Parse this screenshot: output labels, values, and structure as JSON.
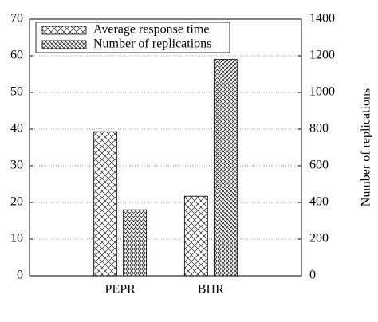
{
  "chart_data": {
    "type": "bar",
    "y2_label": "Number of replications",
    "categories": [
      "PEPR",
      "BHR"
    ],
    "series": [
      {
        "name": "Average response time",
        "values": [
          39.3,
          21.7
        ]
      },
      {
        "name": "Number of replications",
        "axis": "y2",
        "values": [
          360,
          1180
        ]
      }
    ],
    "ylim": [
      0,
      70
    ],
    "yticks": [
      0,
      10,
      20,
      30,
      40,
      50,
      60,
      70
    ],
    "y2lim": [
      0,
      1400
    ],
    "y2ticks": [
      0,
      200,
      400,
      600,
      800,
      1000,
      1200,
      1400
    ],
    "grid": true,
    "legend": "upper left"
  }
}
